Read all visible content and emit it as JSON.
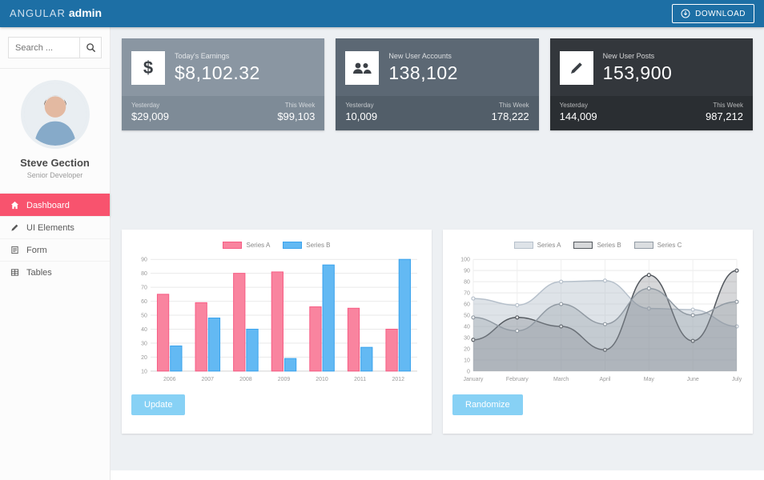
{
  "colors": {
    "topbar": "#1d6fa5",
    "accent": "#f8536e",
    "button": "#87d1f5",
    "main_bg": "#edf0f3"
  },
  "topbar": {
    "logo_light": "ANGULAR",
    "logo_bold": "admin",
    "download_label": "DOWNLOAD"
  },
  "sidebar": {
    "search_placeholder": "Search ...",
    "profile": {
      "name": "Steve Gection",
      "role": "Senior Developer"
    },
    "menu": [
      {
        "label": "Dashboard",
        "icon": "home-icon",
        "active": true
      },
      {
        "label": "UI Elements",
        "icon": "pen-icon",
        "active": false
      },
      {
        "label": "Form",
        "icon": "form-icon",
        "active": false
      },
      {
        "label": "Tables",
        "icon": "tables-icon",
        "active": false
      }
    ]
  },
  "icons": {
    "dollar": "$"
  },
  "cards": [
    {
      "icon": "dollar-icon",
      "title": "Today's Earnings",
      "value": "$8,102.32",
      "bg": "#8a96a2",
      "footer_bg": "#7e8b97",
      "yesterday_label": "Yesterday",
      "yesterday_value": "$29,009",
      "week_label": "This Week",
      "week_value": "$99,103"
    },
    {
      "icon": "users-icon",
      "title": "New User Accounts",
      "value": "138,102",
      "bg": "#5c6874",
      "footer_bg": "#525e69",
      "yesterday_label": "Yesterday",
      "yesterday_value": "10,009",
      "week_label": "This Week",
      "week_value": "178,222"
    },
    {
      "icon": "pencil-icon",
      "title": "New User Posts",
      "value": "153,900",
      "bg": "#33373c",
      "footer_bg": "#2a2e32",
      "yesterday_label": "Yesterday",
      "yesterday_value": "144,009",
      "week_label": "This Week",
      "week_value": "987,212"
    }
  ],
  "chart_data": [
    {
      "type": "bar",
      "categories": [
        "2006",
        "2007",
        "2008",
        "2009",
        "2010",
        "2011",
        "2012"
      ],
      "series": [
        {
          "name": "Series A",
          "color": "#f75c84",
          "fill": "#f9849f",
          "values": [
            65,
            59,
            80,
            81,
            56,
            55,
            40
          ]
        },
        {
          "name": "Series B",
          "color": "#3aa3ee",
          "fill": "#63b9f3",
          "values": [
            28,
            48,
            40,
            19,
            86,
            27,
            90
          ]
        }
      ],
      "ylim": [
        10,
        90
      ],
      "yticks": [
        10,
        20,
        30,
        40,
        50,
        60,
        70,
        80,
        90
      ],
      "grid": true,
      "legend_position": "top",
      "button": "Update"
    },
    {
      "type": "line",
      "categories": [
        "January",
        "February",
        "March",
        "April",
        "May",
        "June",
        "July"
      ],
      "series": [
        {
          "name": "Series A",
          "color": "#b6c0cb",
          "fill": "rgba(182,192,203,0.45)",
          "values": [
            65,
            59,
            80,
            81,
            56,
            55,
            40
          ]
        },
        {
          "name": "Series B",
          "color": "#53585e",
          "fill": "rgba(90,96,102,0.25)",
          "values": [
            28,
            48,
            40,
            19,
            86,
            27,
            90
          ]
        },
        {
          "name": "Series C",
          "color": "#929ba4",
          "fill": "rgba(150,158,166,0.35)",
          "values": [
            48,
            36,
            60,
            42,
            74,
            50,
            62
          ]
        }
      ],
      "ylim": [
        0,
        100
      ],
      "yticks": [
        0,
        10,
        20,
        30,
        40,
        50,
        60,
        70,
        80,
        90,
        100
      ],
      "grid": true,
      "legend_position": "top",
      "button": "Randomize"
    }
  ]
}
